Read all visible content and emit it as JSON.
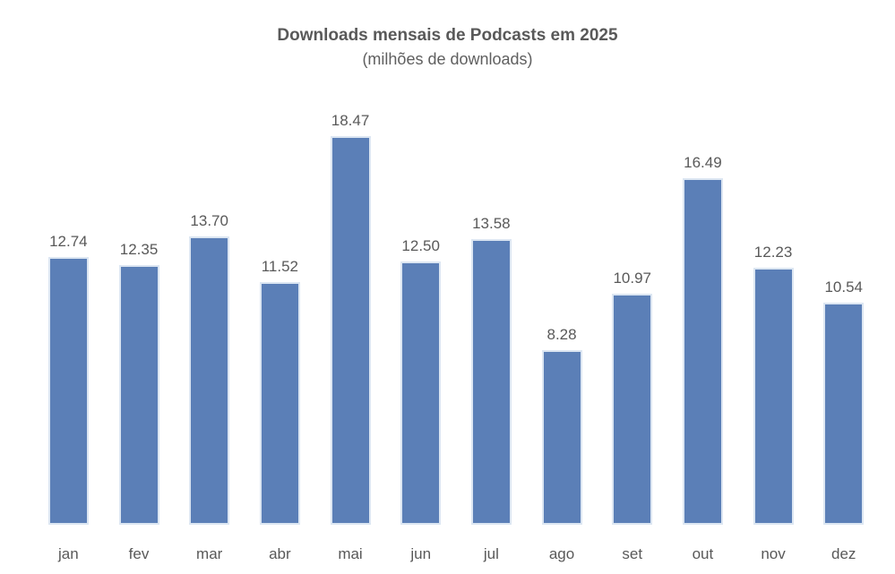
{
  "chart_data": {
    "type": "bar",
    "title": "Downloads mensais de Podcasts em 2025",
    "subtitle": "(milhões de downloads)",
    "categories": [
      "jan",
      "fev",
      "mar",
      "abr",
      "mai",
      "jun",
      "jul",
      "ago",
      "set",
      "out",
      "nov",
      "dez"
    ],
    "values": [
      12.74,
      12.35,
      13.7,
      11.52,
      18.47,
      12.5,
      13.58,
      8.28,
      10.97,
      16.49,
      12.23,
      10.54
    ],
    "value_labels": [
      "12.74",
      "12.35",
      "13.70",
      "11.52",
      "18.47",
      "12.50",
      "13.58",
      "8.28",
      "10.97",
      "16.49",
      "12.23",
      "10.54"
    ],
    "xlabel": "",
    "ylabel": "",
    "ylim": [
      0,
      20
    ],
    "grid": false,
    "legend": false,
    "colors": {
      "bar_fill": "#5b7fb7",
      "bar_border": "#dce6f2",
      "label_text": "#595959",
      "title_text": "#595959",
      "background": "#ffffff"
    }
  }
}
